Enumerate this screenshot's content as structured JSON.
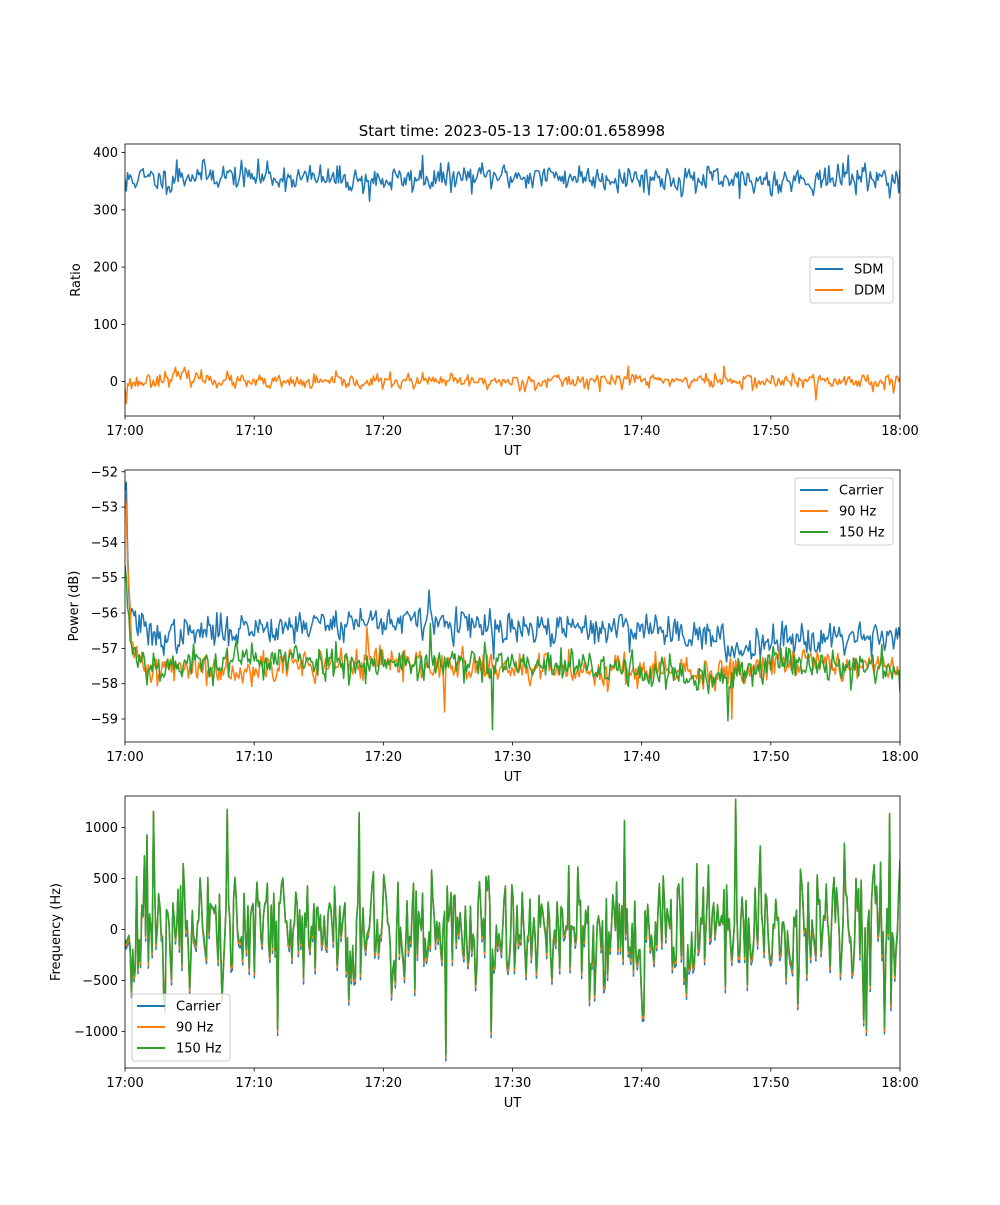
{
  "chart_data": [
    {
      "type": "line",
      "title": "Start time: 2023-05-13 17:00:01.658998",
      "xlabel": "UT",
      "ylabel": "Ratio",
      "xlim": [
        "17:00",
        "18:00"
      ],
      "ylim": [
        -60,
        415
      ],
      "xticks": [
        "17:00",
        "17:10",
        "17:20",
        "17:30",
        "17:40",
        "17:50",
        "18:00"
      ],
      "yticks": [
        0,
        100,
        200,
        300,
        400
      ],
      "ytick_labels": [
        "0",
        "100",
        "200",
        "300",
        "400"
      ],
      "grid": false,
      "legend_position": "center-right",
      "series": [
        {
          "name": "SDM",
          "color": "#1f77b4",
          "base": 357,
          "noise": 14,
          "seed": 11,
          "anchors": [
            [
              0,
              357
            ],
            [
              3.5,
              352
            ],
            [
              5,
              362
            ],
            [
              20,
              351
            ],
            [
              30,
              359
            ],
            [
              40,
              356
            ],
            [
              46.7,
              350
            ],
            [
              60,
              357
            ]
          ],
          "spikes": [
            [
              0.1,
              333
            ],
            [
              4,
              387
            ],
            [
              11,
              385
            ],
            [
              18.9,
              315
            ],
            [
              23,
              395
            ],
            [
              47.6,
              320
            ],
            [
              56,
              395
            ],
            [
              59.9,
              330
            ]
          ]
        },
        {
          "name": "DDM",
          "color": "#ff7f0e",
          "base": 0,
          "noise": 8,
          "seed": 23,
          "anchors": [
            [
              0,
              -5
            ],
            [
              4,
              10
            ],
            [
              10,
              -3
            ],
            [
              20,
              0
            ],
            [
              30,
              0
            ],
            [
              40,
              3
            ],
            [
              50,
              0
            ],
            [
              60,
              2
            ]
          ],
          "spikes": [
            [
              0.15,
              -38
            ],
            [
              4.5,
              18
            ],
            [
              39,
              27
            ],
            [
              46.4,
              27
            ],
            [
              53.5,
              -32
            ],
            [
              59.5,
              -20
            ]
          ]
        }
      ]
    },
    {
      "type": "line",
      "title": "",
      "xlabel": "UT",
      "ylabel": "Power (dB)",
      "xlim": [
        "17:00",
        "18:00"
      ],
      "ylim": [
        -59.65,
        -51.95
      ],
      "xticks": [
        "17:00",
        "17:10",
        "17:20",
        "17:30",
        "17:40",
        "17:50",
        "18:00"
      ],
      "yticks": [
        -52,
        -53,
        -54,
        -55,
        -56,
        -57,
        -58,
        -59
      ],
      "ytick_labels": [
        "−52",
        "−53",
        "−54",
        "−55",
        "−56",
        "−57",
        "−58",
        "−59"
      ],
      "grid": false,
      "legend_position": "top-right",
      "series": [
        {
          "name": "Carrier",
          "color": "#1f77b4",
          "base": -56.5,
          "noise": 0.28,
          "seed": 37,
          "anchors": [
            [
              0,
              -52.3
            ],
            [
              0.4,
              -56.0
            ],
            [
              2,
              -56.7
            ],
            [
              10,
              -56.4
            ],
            [
              20,
              -56.2
            ],
            [
              25,
              -56.3
            ],
            [
              30,
              -56.5
            ],
            [
              40,
              -56.4
            ],
            [
              45,
              -56.6
            ],
            [
              47,
              -57.1
            ],
            [
              50,
              -56.7
            ],
            [
              60,
              -56.6
            ]
          ],
          "spikes": [
            [
              0.1,
              -52.3
            ],
            [
              23.5,
              -55.35
            ],
            [
              28.5,
              -57.3
            ]
          ]
        },
        {
          "name": "90 Hz",
          "color": "#ff7f0e",
          "base": -57.6,
          "noise": 0.28,
          "seed": 41,
          "anchors": [
            [
              0,
              -53.0
            ],
            [
              0.5,
              -57.0
            ],
            [
              2,
              -57.6
            ],
            [
              10,
              -57.5
            ],
            [
              20,
              -57.4
            ],
            [
              30,
              -57.6
            ],
            [
              40,
              -57.6
            ],
            [
              46,
              -57.8
            ],
            [
              50,
              -57.3
            ],
            [
              60,
              -57.6
            ]
          ],
          "spikes": [
            [
              0.1,
              -53.0
            ],
            [
              18.7,
              -56.4
            ],
            [
              24.7,
              -58.8
            ],
            [
              47,
              -59.0
            ]
          ]
        },
        {
          "name": "150 Hz",
          "color": "#2ca02c",
          "base": -57.5,
          "noise": 0.3,
          "seed": 53,
          "anchors": [
            [
              0,
              -55.0
            ],
            [
              0.5,
              -57.0
            ],
            [
              2,
              -57.5
            ],
            [
              10,
              -57.3
            ],
            [
              20,
              -57.4
            ],
            [
              30,
              -57.5
            ],
            [
              40,
              -57.6
            ],
            [
              46,
              -58.0
            ],
            [
              50,
              -57.3
            ],
            [
              60,
              -57.6
            ]
          ],
          "spikes": [
            [
              0.1,
              -55.0
            ],
            [
              23.6,
              -56.3
            ],
            [
              28.4,
              -59.3
            ],
            [
              46.7,
              -59.05
            ]
          ]
        }
      ]
    },
    {
      "type": "line",
      "title": "",
      "xlabel": "UT",
      "ylabel": "Frequency (Hz)",
      "xlim": [
        "17:00",
        "18:00"
      ],
      "ylim": [
        -1360,
        1310
      ],
      "xticks": [
        "17:00",
        "17:10",
        "17:20",
        "17:30",
        "17:40",
        "17:50",
        "18:00"
      ],
      "yticks": [
        1000,
        500,
        0,
        -500,
        -1000
      ],
      "ytick_labels": [
        "1000",
        "500",
        "0",
        "−500",
        "−1000"
      ],
      "grid": false,
      "legend_position": "lower-left",
      "series": [
        {
          "name": "Carrier",
          "color": "#1f77b4",
          "offset": -60
        },
        {
          "name": "90 Hz",
          "color": "#ff7f0e",
          "offset": -30
        },
        {
          "name": "150 Hz",
          "color": "#2ca02c",
          "offset": 0
        }
      ],
      "base_signal": {
        "noise": 380,
        "seed": 71,
        "spikes": [
          [
            0.9,
            520
          ],
          [
            1.7,
            930
          ],
          [
            2.2,
            1160
          ],
          [
            7.9,
            1180
          ],
          [
            11.8,
            -980
          ],
          [
            18.1,
            1150
          ],
          [
            24.8,
            -1230
          ],
          [
            28.3,
            -1000
          ],
          [
            38.7,
            1070
          ],
          [
            47.3,
            1280
          ],
          [
            57.4,
            -980
          ],
          [
            59.2,
            1140
          ]
        ]
      }
    }
  ]
}
